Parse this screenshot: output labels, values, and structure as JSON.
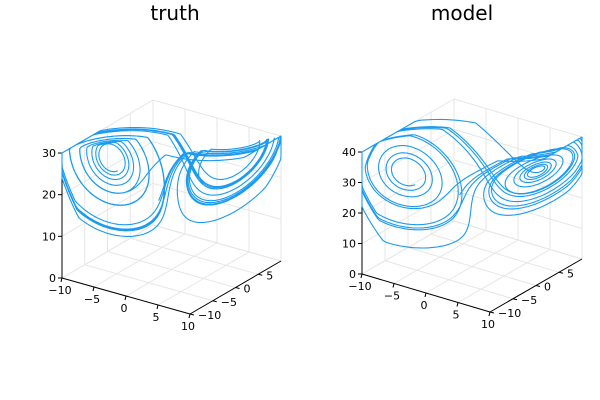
{
  "chart_data": [
    {
      "type": "line",
      "title": "truth",
      "xlabel": "",
      "ylabel": "",
      "zlabel": "",
      "xlim": [
        -10,
        10
      ],
      "ylim": [
        -10,
        10
      ],
      "zlim": [
        0,
        30
      ],
      "x_ticks": [
        "−10",
        "−5",
        "0",
        "5",
        "10"
      ],
      "y_ticks": [
        "−10",
        "−5",
        "0",
        "5"
      ],
      "z_ticks": [
        "0",
        "10",
        "20",
        "30"
      ],
      "grid": true,
      "series": [
        {
          "color": "#1a9bf0",
          "description": "3D Lorenz-attractor trajectory"
        }
      ]
    },
    {
      "type": "line",
      "title": "model",
      "xlabel": "",
      "ylabel": "",
      "zlabel": "",
      "xlim": [
        -10,
        10
      ],
      "ylim": [
        -10,
        10
      ],
      "zlim": [
        0,
        40
      ],
      "x_ticks": [
        "−10",
        "−5",
        "0",
        "5",
        "10"
      ],
      "y_ticks": [
        "−10",
        "−5",
        "0",
        "5"
      ],
      "z_ticks": [
        "0",
        "10",
        "20",
        "30",
        "40"
      ],
      "grid": true,
      "series": [
        {
          "color": "#1a9bf0",
          "description": "3D Lorenz-attractor trajectory"
        }
      ]
    }
  ]
}
